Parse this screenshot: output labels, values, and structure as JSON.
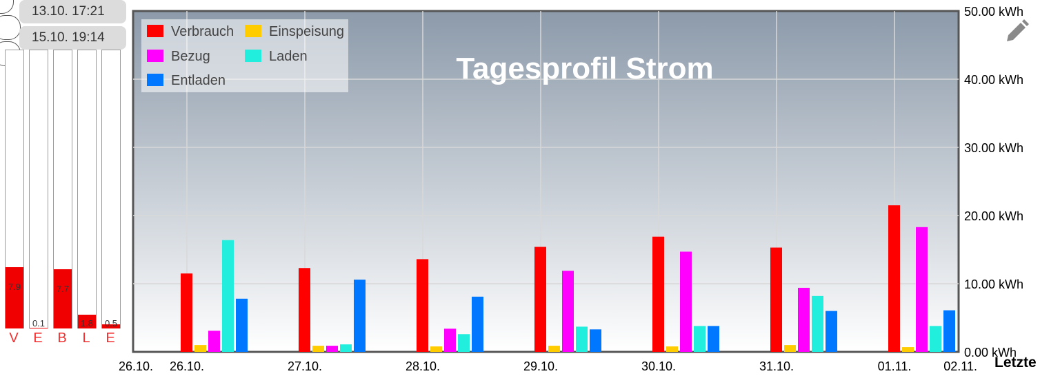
{
  "sidebar": {
    "dates": [
      "13.10. 17:21",
      "15.10. 19:14"
    ],
    "bars": [
      {
        "letter": "V",
        "value": 7.9,
        "label": "7.9"
      },
      {
        "letter": "E",
        "value": 0.1,
        "label": "0.1"
      },
      {
        "letter": "B",
        "value": 7.7,
        "label": "7.7"
      },
      {
        "letter": "L",
        "value": 1.8,
        "label": "1.8"
      },
      {
        "letter": "E",
        "value": 0.5,
        "label": "0.5"
      }
    ],
    "max": 36
  },
  "footer": {
    "label": "Letzte"
  },
  "colors": {
    "Verbrauch": "#ff0000",
    "Einspeisung": "#ffcc00",
    "Bezug": "#ff00ff",
    "Laden": "#22eedd",
    "Entladen": "#0077ff"
  },
  "chart_data": {
    "type": "bar",
    "title": "Tagesprofil Strom",
    "categories": [
      "26.10.",
      "27.10.",
      "28.10.",
      "29.10.",
      "30.10.",
      "31.10.",
      "01.11."
    ],
    "x_tick_labels": [
      "26.10.",
      "26.10.",
      "27.10.",
      "28.10.",
      "29.10.",
      "30.10.",
      "31.10.",
      "01.11.",
      "02.11."
    ],
    "y_tick_labels": [
      "0.00 kWh",
      "10.00 kWh",
      "20.00 kWh",
      "30.00 kWh",
      "40.00 kWh",
      "50.00 kWh"
    ],
    "ylim": [
      0,
      50
    ],
    "grid": true,
    "legend_position": "top-left",
    "series": [
      {
        "name": "Verbrauch",
        "values": [
          11.5,
          12.3,
          13.6,
          15.4,
          16.9,
          15.3,
          21.5
        ]
      },
      {
        "name": "Einspeisung",
        "values": [
          1.0,
          0.9,
          0.8,
          0.9,
          0.8,
          1.0,
          0.7
        ]
      },
      {
        "name": "Bezug",
        "values": [
          3.1,
          0.9,
          3.4,
          11.9,
          14.7,
          9.4,
          18.3
        ]
      },
      {
        "name": "Laden",
        "values": [
          16.4,
          1.1,
          2.6,
          3.7,
          3.8,
          8.2,
          3.8
        ]
      },
      {
        "name": "Entladen",
        "values": [
          7.8,
          10.6,
          8.1,
          3.3,
          3.8,
          6.0,
          6.1
        ]
      }
    ]
  }
}
